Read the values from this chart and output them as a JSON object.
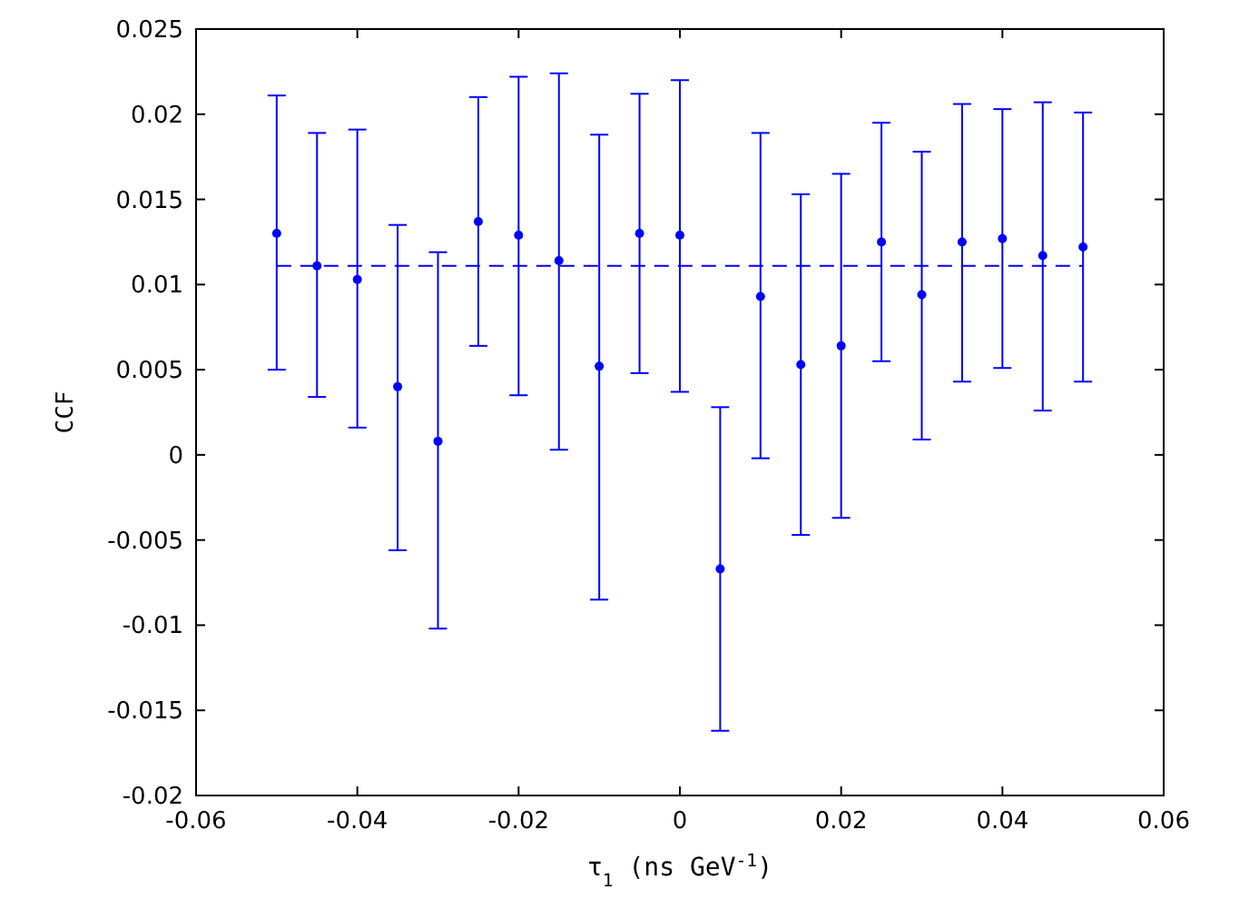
{
  "chart_data": {
    "type": "scatter",
    "xlabel": "τ$_{1}$ (ns GeV$^{-1}$)",
    "ylabel": "CCF",
    "xlim": [
      -0.06,
      0.06
    ],
    "xticks": [
      -0.06,
      -0.04,
      -0.02,
      0,
      0.02,
      0.04,
      0.06
    ],
    "ylim": [
      -0.02,
      0.025
    ],
    "yticks": [
      -0.02,
      -0.015,
      -0.01,
      -0.005,
      0,
      0.005,
      0.01,
      0.015,
      0.02,
      0.025
    ],
    "grid": false,
    "series": [
      {
        "color": "#0000ff",
        "marker": "circle",
        "x": [
          -0.05,
          -0.045,
          -0.04,
          -0.035,
          -0.03,
          -0.025,
          -0.02,
          -0.015,
          -0.01,
          -0.005,
          0,
          0.005,
          0.01,
          0.015,
          0.02,
          0.025,
          0.03,
          0.035,
          0.04,
          0.045,
          0.05
        ],
        "values": [
          0.013,
          0.0111,
          0.0103,
          0.004,
          0.0008,
          0.0137,
          0.0129,
          0.0114,
          0.0052,
          0.013,
          0.0129,
          -0.0067,
          0.0093,
          0.0053,
          0.0064,
          0.0125,
          0.0094,
          0.0125,
          0.0127,
          0.0117,
          0.0122
        ],
        "errors": [
          [
            0.005,
            0.0211
          ],
          [
            0.0034,
            0.0189
          ],
          [
            0.0016,
            0.0191
          ],
          [
            -0.0056,
            0.0135
          ],
          [
            -0.0102,
            0.0119
          ],
          [
            0.0064,
            0.021
          ],
          [
            0.0035,
            0.0222
          ],
          [
            0.0003,
            0.0224
          ],
          [
            -0.0085,
            0.0188
          ],
          [
            0.0048,
            0.0212
          ],
          [
            0.0037,
            0.022
          ],
          [
            -0.0162,
            0.0028
          ],
          [
            -0.0002,
            0.0189
          ],
          [
            -0.0047,
            0.0153
          ],
          [
            -0.0037,
            0.0165
          ],
          [
            0.0055,
            0.0195
          ],
          [
            0.0009,
            0.0178
          ],
          [
            0.0043,
            0.0206
          ],
          [
            0.0051,
            0.0203
          ],
          [
            0.0026,
            0.0207
          ],
          [
            0.0043,
            0.0201
          ]
        ]
      },
      {
        "type": "line",
        "color": "#0000ff",
        "marker": "none",
        "line_style": "dashed",
        "x": [
          -0.05,
          0.05
        ],
        "values": [
          0.0111,
          0.0111
        ]
      }
    ]
  }
}
